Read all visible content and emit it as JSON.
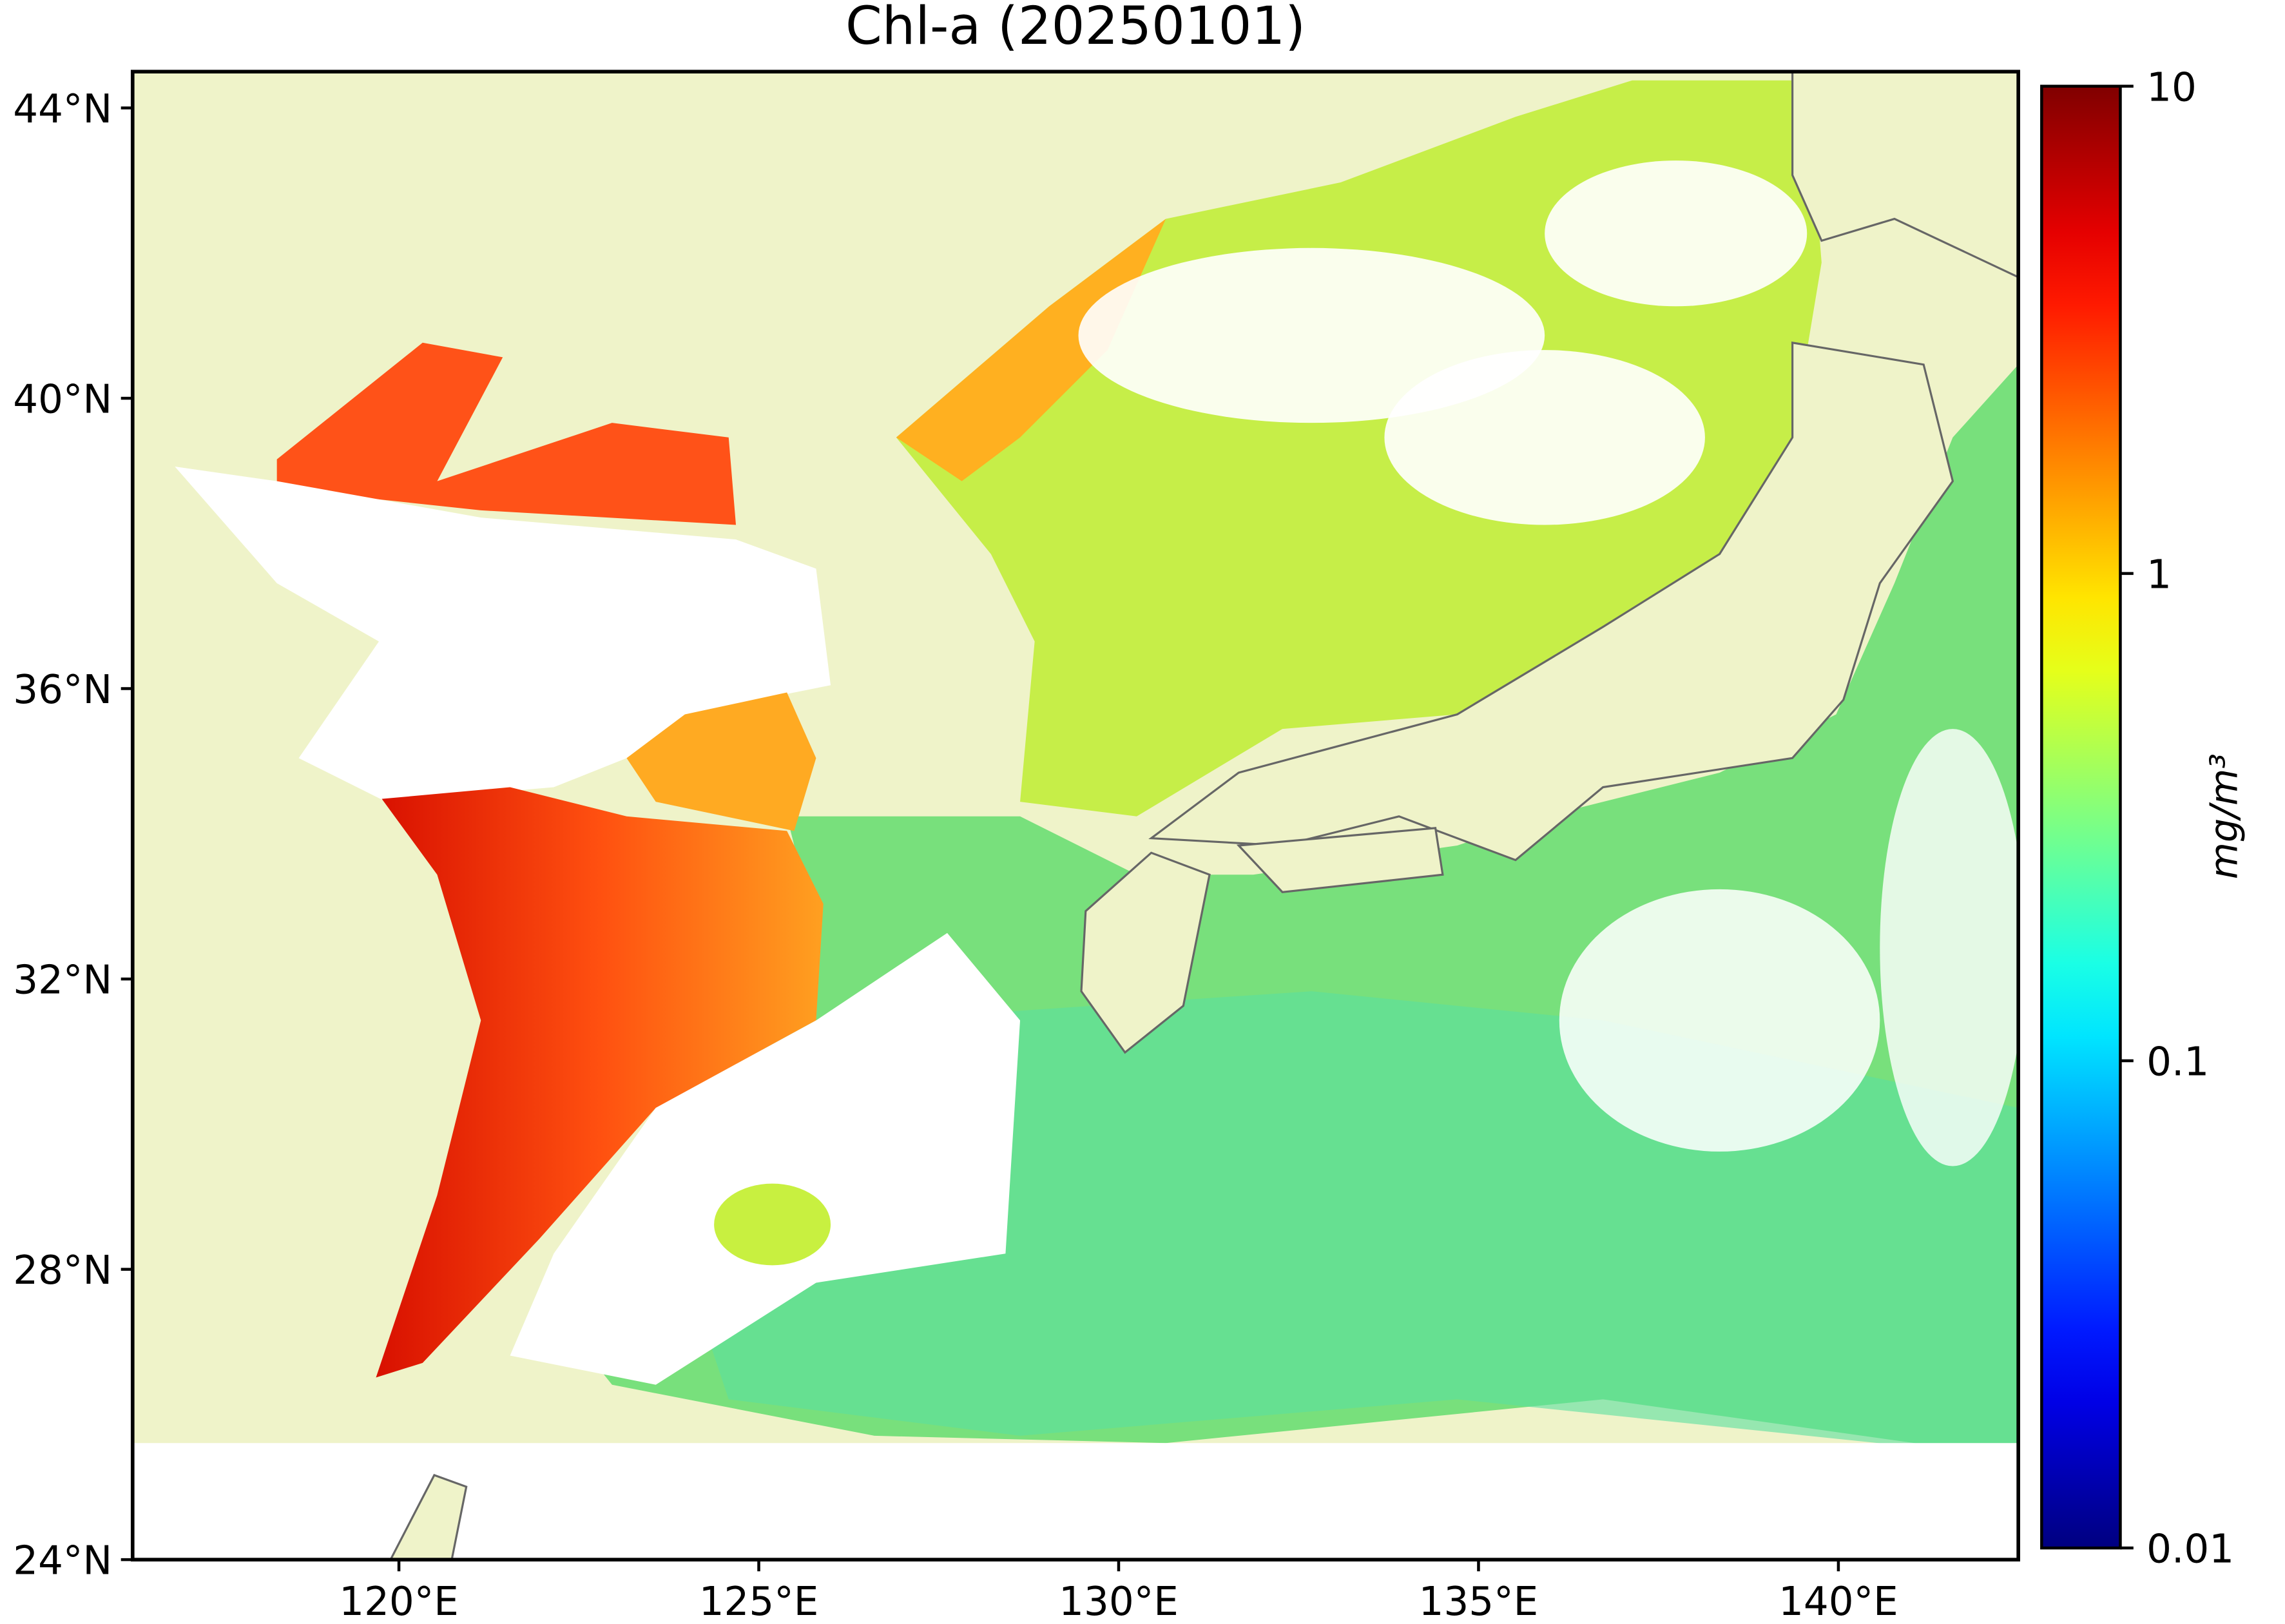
{
  "title": "Chl-a (20250101)",
  "map": {
    "xlim": [
      116.3,
      142.5
    ],
    "ylim": [
      24,
      44.5
    ],
    "xticks": [
      {
        "value": 120,
        "label": "120°E"
      },
      {
        "value": 125,
        "label": "125°E"
      },
      {
        "value": 130,
        "label": "130°E"
      },
      {
        "value": 135,
        "label": "135°E"
      },
      {
        "value": 140,
        "label": "140°E"
      }
    ],
    "yticks": [
      {
        "value": 24,
        "label": "24°N"
      },
      {
        "value": 28,
        "label": "28°N"
      },
      {
        "value": 32,
        "label": "32°N"
      },
      {
        "value": 36,
        "label": "36°N"
      },
      {
        "value": 40,
        "label": "40°N"
      },
      {
        "value": 44,
        "label": "44°N"
      }
    ],
    "land_color": "#eff3c9"
  },
  "colorbar": {
    "colormap": "jet",
    "log_scale": true,
    "lim": [
      0.01,
      10
    ],
    "ticks": [
      0.01,
      0.1,
      1,
      10
    ],
    "label": "mg/m³"
  }
}
